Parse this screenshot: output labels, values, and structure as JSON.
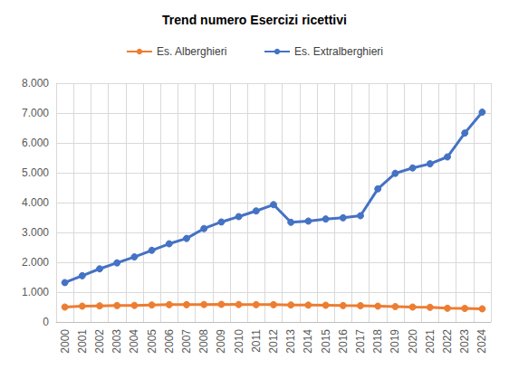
{
  "chart_data": {
    "type": "line",
    "title": "Trend numero Esercizi ricettivi",
    "categories": [
      "2000",
      "2001",
      "2002",
      "2003",
      "2004",
      "2005",
      "2006",
      "2007",
      "2008",
      "2009",
      "2010",
      "2011",
      "2012",
      "2013",
      "2014",
      "2015",
      "2016",
      "2017",
      "2018",
      "2019",
      "2020",
      "2021",
      "2022",
      "2023",
      "2024"
    ],
    "series": [
      {
        "name": "Es. Alberghieri",
        "color": "#ed7d31",
        "marker": "circle",
        "line_style": "solid",
        "values": [
          500,
          530,
          540,
          550,
          555,
          570,
          580,
          580,
          585,
          590,
          585,
          580,
          580,
          570,
          565,
          560,
          550,
          545,
          530,
          515,
          500,
          490,
          460,
          455,
          440
        ]
      },
      {
        "name": "Es. Extralberghieri",
        "color": "#4472c4",
        "marker": "circle",
        "line_style": "solid",
        "values": [
          1320,
          1550,
          1780,
          1980,
          2180,
          2400,
          2620,
          2800,
          3130,
          3350,
          3530,
          3720,
          3930,
          3340,
          3380,
          3450,
          3490,
          3560,
          4460,
          4980,
          5160,
          5300,
          5530,
          6330,
          7030
        ]
      }
    ],
    "ylim": [
      0,
      8000
    ],
    "yticks": [
      0,
      {
        "value": 1000,
        "label": "1.000"
      },
      {
        "value": 2000,
        "label": "2.000"
      },
      {
        "value": 3000,
        "label": "3.000"
      },
      {
        "value": 4000,
        "label": "4.000"
      },
      {
        "value": 5000,
        "label": "5.000"
      },
      {
        "value": 6000,
        "label": "6.000"
      },
      {
        "value": 7000,
        "label": "7.000"
      },
      {
        "value": 8000,
        "label": "8.000"
      }
    ],
    "grid": true,
    "legend": "top"
  }
}
